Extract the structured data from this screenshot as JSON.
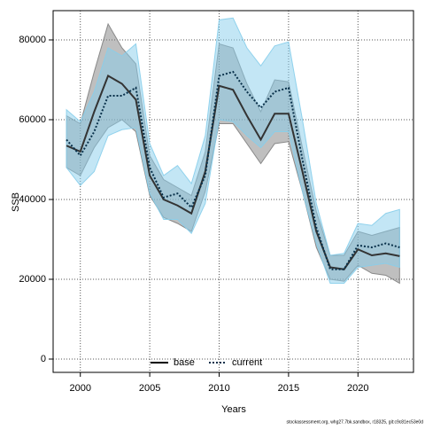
{
  "chart_data": {
    "type": "line",
    "xlabel": "Years",
    "ylabel": "SSB",
    "footer": "stockassessment.org, whg27.7bk.sandbox, r18325, git:c9c81ec53e0d",
    "x": [
      1999,
      2000,
      2001,
      2002,
      2003,
      2004,
      2005,
      2006,
      2007,
      2008,
      2009,
      2010,
      2011,
      2012,
      2013,
      2014,
      2015,
      2016,
      2017,
      2018,
      2019,
      2020,
      2021,
      2022,
      2023
    ],
    "series": [
      {
        "name": "base",
        "color": "#333333",
        "band_color": "#808080",
        "dash": false,
        "values": [
          53500,
          52000,
          62000,
          71000,
          69000,
          65000,
          46000,
          40000,
          38500,
          36500,
          47000,
          68500,
          67500,
          61000,
          55000,
          61500,
          61500,
          47000,
          32000,
          23000,
          22500,
          27500,
          26000,
          26500,
          25800
        ],
        "lower": [
          48000,
          46000,
          53000,
          58000,
          60000,
          57000,
          41000,
          35500,
          34000,
          32000,
          42000,
          59000,
          59000,
          54000,
          49000,
          54000,
          54500,
          42000,
          28000,
          20000,
          19500,
          23500,
          21500,
          21000,
          19000
        ],
        "upper": [
          61000,
          59000,
          72000,
          84000,
          78000,
          74000,
          51000,
          45000,
          43000,
          41000,
          52000,
          79000,
          78000,
          69000,
          62000,
          70000,
          69500,
          53000,
          37000,
          26000,
          26000,
          32000,
          31000,
          32000,
          33000
        ]
      },
      {
        "name": "current",
        "color": "#08304a",
        "band_color": "#87ceeb",
        "dash": true,
        "values": [
          55000,
          51000,
          57000,
          66000,
          66000,
          68000,
          48000,
          40500,
          41500,
          38000,
          46000,
          71000,
          72000,
          67000,
          63000,
          67000,
          68000,
          50000,
          33000,
          22500,
          22500,
          28500,
          28000,
          29000,
          28000
        ],
        "lower": [
          48000,
          43500,
          47000,
          56000,
          57500,
          58000,
          41500,
          35000,
          35000,
          31500,
          39000,
          60000,
          59500,
          56000,
          53000,
          57000,
          57000,
          42000,
          29000,
          19000,
          19000,
          23000,
          23500,
          24000,
          23000
        ],
        "upper": [
          62500,
          59500,
          67000,
          78000,
          76000,
          79000,
          54000,
          46000,
          48500,
          44000,
          56000,
          85000,
          85500,
          78000,
          73500,
          78500,
          79500,
          60000,
          39000,
          26000,
          26500,
          34000,
          33500,
          36500,
          37500
        ]
      }
    ],
    "xlim": [
      1998.04,
      2024.0
    ],
    "xticks": [
      2000,
      2005,
      2010,
      2015,
      2020
    ],
    "ylim": [
      -3333,
      87333
    ],
    "yticks": [
      0,
      20000,
      40000,
      60000,
      80000
    ],
    "grid": true,
    "legend": "bottom"
  }
}
